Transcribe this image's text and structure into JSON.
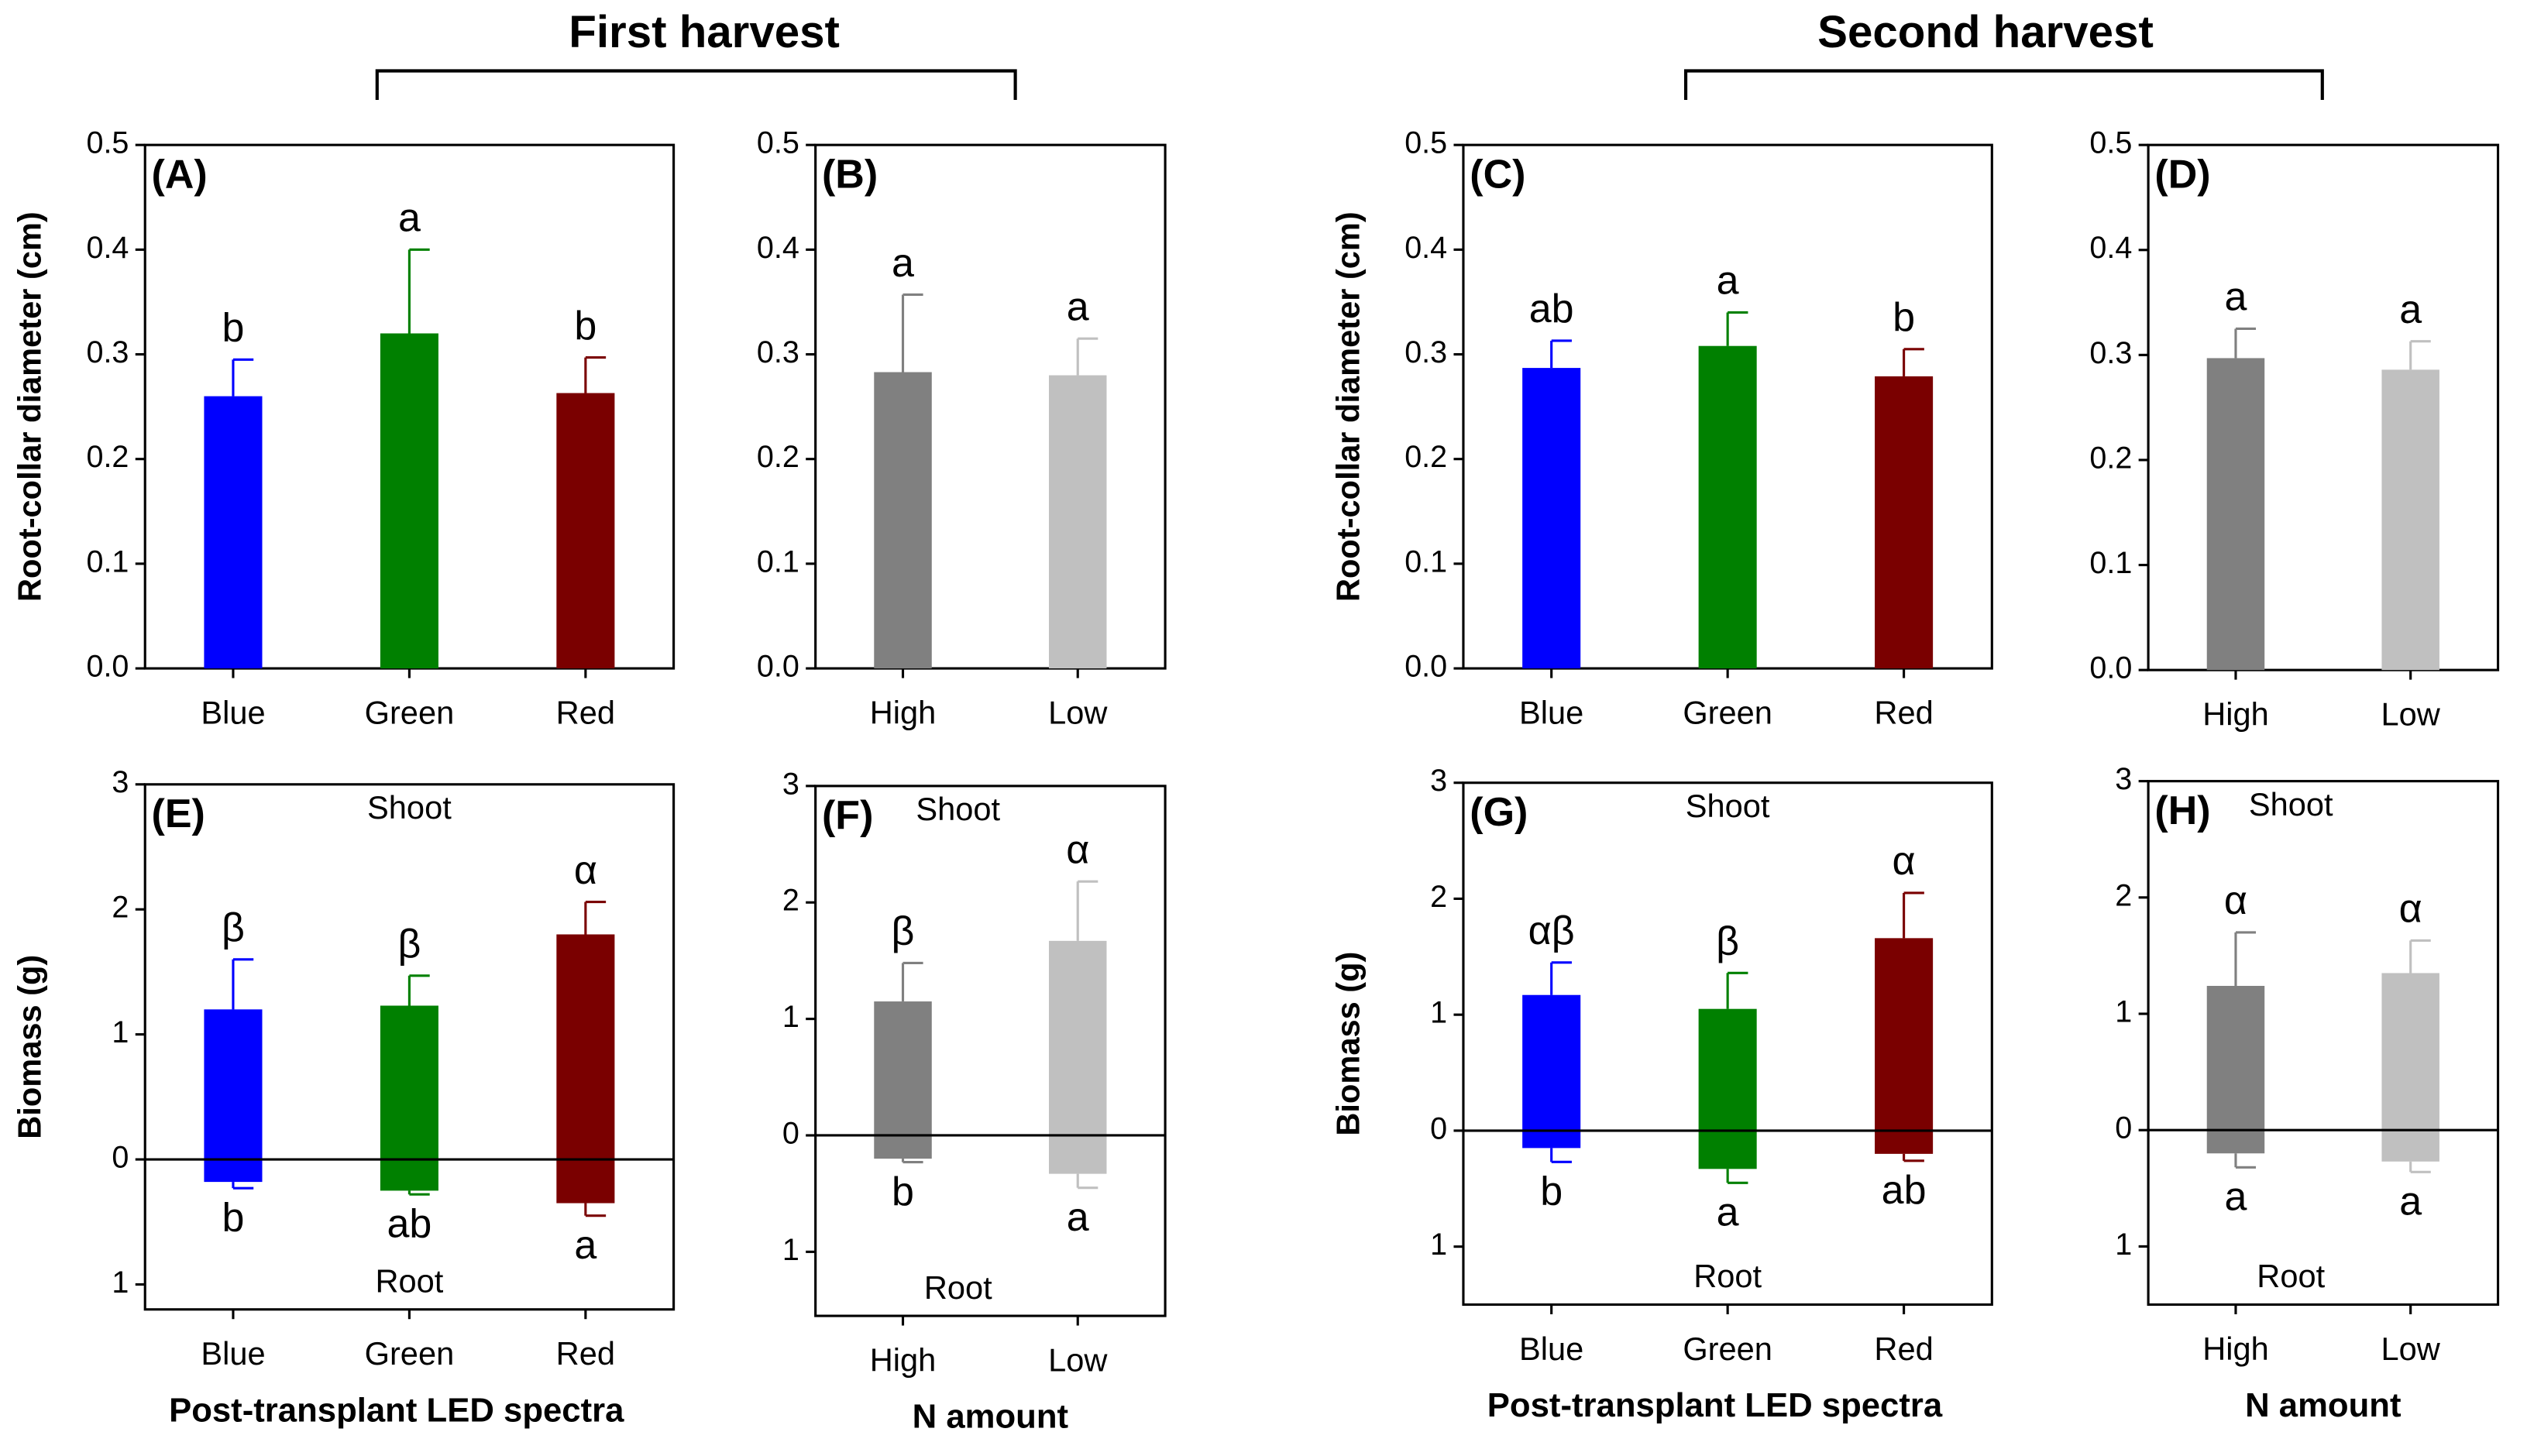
{
  "headers": [
    {
      "text": "First harvest"
    },
    {
      "text": "Second harvest"
    }
  ],
  "chart_data": [
    {
      "type": "bar",
      "label": "(A)",
      "ylabel": "Root-collar diameter (cm)",
      "categories": [
        "Blue",
        "Green",
        "Red"
      ],
      "colors": [
        "#0000ff",
        "#008000",
        "#7a0000"
      ],
      "ylim": [
        0,
        0.5
      ],
      "yticks": [
        {
          "value": 0,
          "label": "0.0"
        },
        0.1,
        0.2,
        0.3,
        0.4,
        0.5
      ],
      "series": [
        {
          "values": [
            0.26,
            0.32,
            0.263
          ],
          "errors": [
            0.035,
            0.08,
            0.034
          ],
          "letters": [
            "b",
            "a",
            "b"
          ]
        }
      ]
    },
    {
      "type": "bar",
      "label": "(B)",
      "categories": [
        "High",
        "Low"
      ],
      "colors": [
        "#808080",
        "#c0c0c0"
      ],
      "ylim": [
        0,
        0.5
      ],
      "yticks": [
        {
          "value": 0,
          "label": "0.0"
        },
        0.1,
        0.2,
        0.3,
        0.4,
        0.5
      ],
      "series": [
        {
          "values": [
            0.283,
            0.28
          ],
          "errors": [
            0.074,
            0.035
          ],
          "letters": [
            "a",
            "a"
          ]
        }
      ]
    },
    {
      "type": "bar",
      "label": "(C)",
      "ylabel": "Root-collar diameter (cm)",
      "categories": [
        "Blue",
        "Green",
        "Red"
      ],
      "colors": [
        "#0000ff",
        "#008000",
        "#7a0000"
      ],
      "ylim": [
        0,
        0.5
      ],
      "yticks": [
        {
          "value": 0,
          "label": "0.0"
        },
        0.1,
        0.2,
        0.3,
        0.4,
        0.5
      ],
      "series": [
        {
          "values": [
            0.287,
            0.308,
            0.279
          ],
          "errors": [
            0.026,
            0.032,
            0.026
          ],
          "letters": [
            "ab",
            "a",
            "b"
          ]
        }
      ]
    },
    {
      "type": "bar",
      "label": "(D)",
      "categories": [
        "High",
        "Low"
      ],
      "colors": [
        "#808080",
        "#c0c0c0"
      ],
      "ylim": [
        0,
        0.5
      ],
      "yticks": [
        {
          "value": 0,
          "label": "0.0"
        },
        0.1,
        0.2,
        0.3,
        0.4,
        0.5
      ],
      "series": [
        {
          "values": [
            0.297,
            0.286
          ],
          "errors": [
            0.028,
            0.027
          ],
          "letters": [
            "a",
            "a"
          ]
        }
      ]
    },
    {
      "type": "bar",
      "label": "(E)",
      "ylabel": "Biomass (g)",
      "xlabel": "Post-transplant LED spectra",
      "categories": [
        "Blue",
        "Green",
        "Red"
      ],
      "colors": [
        "#0000ff",
        "#008000",
        "#7a0000"
      ],
      "ylim": [
        -1.2,
        3
      ],
      "yticks": [
        3,
        2,
        1,
        0,
        {
          "value": -1,
          "label": "1"
        }
      ],
      "series": [
        {
          "name": "Shoot",
          "values": [
            1.2,
            1.23,
            1.8
          ],
          "errors": [
            0.4,
            0.24,
            0.26
          ],
          "letters": [
            "β",
            "β",
            "α"
          ]
        },
        {
          "name": "Root",
          "values": [
            -0.18,
            -0.25,
            -0.35
          ],
          "errors": [
            0.05,
            0.03,
            0.1
          ],
          "letters": [
            "b",
            "ab",
            "a"
          ]
        }
      ]
    },
    {
      "type": "bar",
      "label": "(F)",
      "xlabel": "N amount",
      "categories": [
        "High",
        "Low"
      ],
      "colors": [
        "#808080",
        "#c0c0c0"
      ],
      "ylim": [
        -1.55,
        3
      ],
      "yticks": [
        3,
        2,
        1,
        0,
        {
          "value": -1,
          "label": "1"
        }
      ],
      "series": [
        {
          "name": "Shoot",
          "values": [
            1.15,
            1.67
          ],
          "errors": [
            0.33,
            0.51
          ],
          "letters": [
            "β",
            "α"
          ]
        },
        {
          "name": "Root",
          "values": [
            -0.2,
            -0.33
          ],
          "errors": [
            0.03,
            0.12
          ],
          "letters": [
            "b",
            "a"
          ]
        }
      ]
    },
    {
      "type": "bar",
      "label": "(G)",
      "ylabel": "Biomass (g)",
      "xlabel": "Post-transplant LED spectra",
      "categories": [
        "Blue",
        "Green",
        "Red"
      ],
      "colors": [
        "#0000ff",
        "#008000",
        "#7a0000"
      ],
      "ylim": [
        -1.5,
        3
      ],
      "yticks": [
        3,
        2,
        1,
        0,
        {
          "value": -1,
          "label": "1"
        }
      ],
      "series": [
        {
          "name": "Shoot",
          "values": [
            1.17,
            1.05,
            1.66
          ],
          "errors": [
            0.28,
            0.31,
            0.39
          ],
          "letters": [
            "αβ",
            "β",
            "α"
          ]
        },
        {
          "name": "Root",
          "values": [
            -0.15,
            -0.33,
            -0.2
          ],
          "errors": [
            0.12,
            0.12,
            0.06
          ],
          "letters": [
            "b",
            "a",
            "ab"
          ]
        }
      ]
    },
    {
      "type": "bar",
      "label": "(H)",
      "xlabel": "N amount",
      "categories": [
        "High",
        "Low"
      ],
      "colors": [
        "#808080",
        "#c0c0c0"
      ],
      "ylim": [
        -1.5,
        3
      ],
      "yticks": [
        3,
        2,
        1,
        0,
        {
          "value": -1,
          "label": "1"
        }
      ],
      "series": [
        {
          "name": "Shoot",
          "values": [
            1.24,
            1.35
          ],
          "errors": [
            0.46,
            0.28
          ],
          "letters": [
            "α",
            "α"
          ]
        },
        {
          "name": "Root",
          "values": [
            -0.2,
            -0.27
          ],
          "errors": [
            0.12,
            0.09
          ],
          "letters": [
            "a",
            "a"
          ]
        }
      ]
    }
  ]
}
